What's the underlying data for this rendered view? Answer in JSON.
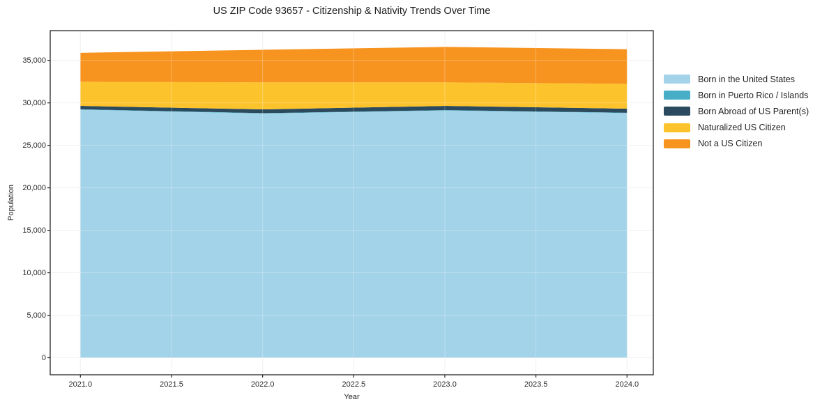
{
  "figure": {
    "title": "US ZIP Code 93657 - Citizenship & Nativity Trends Over Time"
  },
  "chart_data": {
    "type": "area",
    "stacked": true,
    "title": "US ZIP Code 93657 - Citizenship & Nativity Trends Over Time",
    "xlabel": "Year",
    "ylabel": "Population",
    "x": [
      2021,
      2022,
      2023,
      2024
    ],
    "series": [
      {
        "name": "Born in the United States",
        "color": "#a3d3e9",
        "values": [
          29200,
          28750,
          29100,
          28800
        ]
      },
      {
        "name": "Born in Puerto Rico / Islands",
        "color": "#48adc6",
        "values": [
          50,
          40,
          50,
          40
        ]
      },
      {
        "name": "Born Abroad of US Parent(s)",
        "color": "#2b4a5e",
        "values": [
          390,
          440,
          490,
          480
        ]
      },
      {
        "name": "Naturalized US Citizen",
        "color": "#fdc32d",
        "values": [
          2850,
          3180,
          2770,
          2920
        ]
      },
      {
        "name": "Not a US Citizen",
        "color": "#f7941f",
        "values": [
          3400,
          3840,
          4180,
          4080
        ]
      }
    ],
    "stack_totals": [
      35890,
      36250,
      36590,
      36320
    ],
    "xlim": [
      2020.83,
      2024.14
    ],
    "ylim": [
      -2000,
      38500
    ],
    "x_ticks": {
      "values": [
        2021.0,
        2021.5,
        2022.0,
        2022.5,
        2023.0,
        2023.5,
        2024.0
      ],
      "labels": [
        "2021.0",
        "2021.5",
        "2022.0",
        "2022.5",
        "2023.0",
        "2023.5",
        "2024.0"
      ]
    },
    "y_ticks": {
      "values": [
        0,
        5000,
        10000,
        15000,
        20000,
        25000,
        30000,
        35000
      ],
      "labels": [
        "0",
        "5,000",
        "10,000",
        "15,000",
        "20,000",
        "25,000",
        "30,000",
        "35,000"
      ]
    },
    "grid": true,
    "grid_color": "#ededf1",
    "spine_color": "#262626",
    "legend_position": "right"
  }
}
